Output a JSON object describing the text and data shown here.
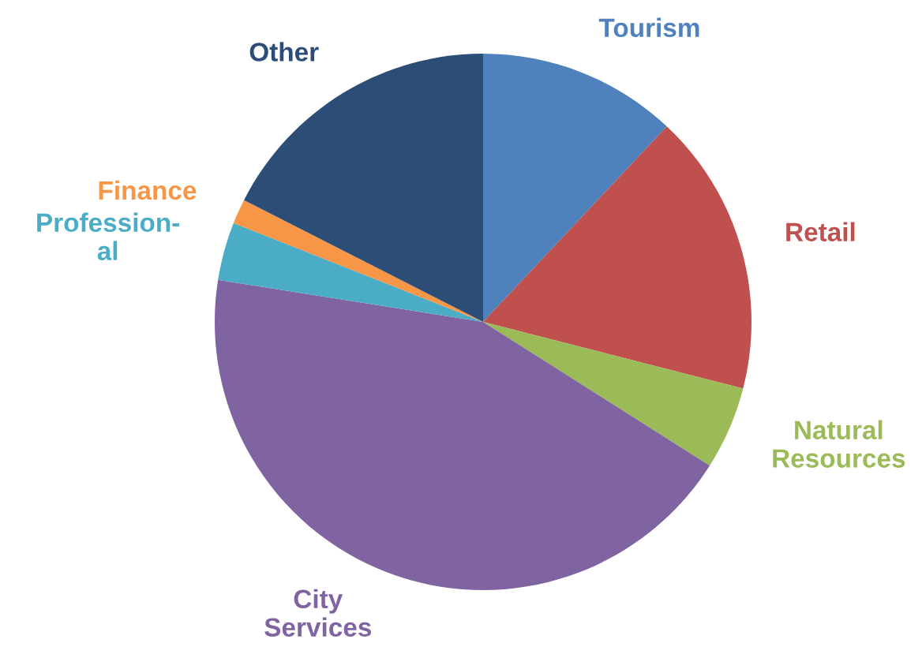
{
  "chart_data": {
    "type": "pie",
    "categories": [
      "Tourism",
      "Retail",
      "Natural\nResources",
      "City\nServices",
      "Profession-\nal",
      "Finance",
      "Other"
    ],
    "values": [
      12,
      17,
      5,
      43.5,
      3.5,
      1.5,
      17.5
    ],
    "colors": [
      "#4f81bd",
      "#c0504d",
      "#9bbb59",
      "#8064a2",
      "#4bacc6",
      "#f79646",
      "#2c4d75"
    ],
    "legend": false
  }
}
